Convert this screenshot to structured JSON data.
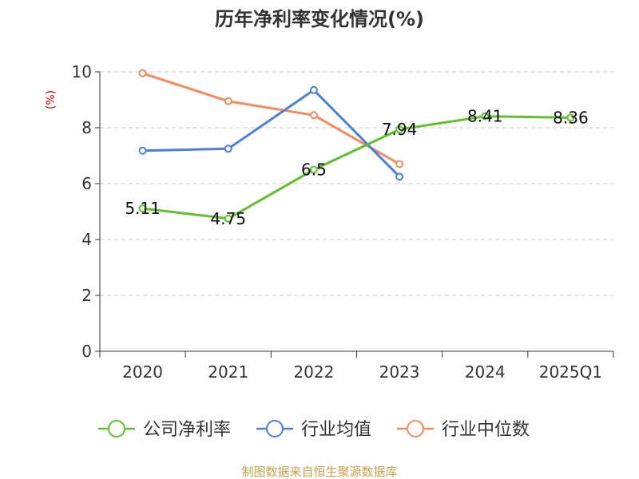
{
  "chart_data": {
    "type": "line",
    "title": "历年净利率变化情况(%)",
    "unit_label": "(%)",
    "categories": [
      "2020",
      "2021",
      "2022",
      "2023",
      "2024",
      "2025Q1"
    ],
    "ylim": [
      0,
      10
    ],
    "yticks": [
      0,
      2,
      4,
      6,
      8,
      10
    ],
    "grid": true,
    "legend_position": "bottom",
    "series": [
      {
        "name": "公司净利率",
        "color": "#5ec22c",
        "values": [
          5.11,
          4.75,
          6.5,
          7.94,
          8.41,
          8.36
        ],
        "labels": [
          "5.11",
          "4.75",
          "6.5",
          "7.94",
          "8.41",
          "8.36"
        ]
      },
      {
        "name": "行业均值",
        "color": "#4a7fdc",
        "values": [
          7.18,
          7.25,
          9.35,
          6.25,
          null,
          null
        ]
      },
      {
        "name": "行业中位数",
        "color": "#f78a5c",
        "values": [
          9.95,
          8.95,
          8.45,
          6.7,
          null,
          null
        ]
      }
    ],
    "source": "制图数据来自恒生聚源数据库"
  }
}
